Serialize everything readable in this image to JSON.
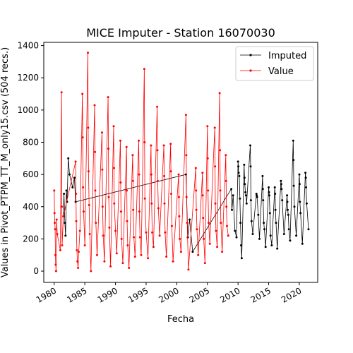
{
  "chart_data": {
    "type": "line",
    "title": "MICE Imputer - Station 16070030",
    "xlabel": "Fecha",
    "ylabel": "Values in Pivot_PTPM_TT_M_only15.csv (504 recs.)",
    "xlim": [
      1978.3,
      2023.0
    ],
    "ylim": [
      -70,
      1420
    ],
    "x_ticks": [
      1980,
      1985,
      1990,
      1995,
      2000,
      2005,
      2010,
      2015,
      2020
    ],
    "y_ticks": [
      0,
      200,
      400,
      600,
      800,
      1000,
      1200,
      1400
    ],
    "legend": {
      "placement": "top-right",
      "entries": [
        "Imputed",
        "Value"
      ]
    },
    "grid": false,
    "colors": {
      "imputed": "#000000",
      "value": "#ff0000"
    },
    "series": [
      {
        "name": "Imputed",
        "x": [
          1981.5,
          1981.6,
          1981.75,
          1981.85,
          1982.0,
          1982.1,
          1982.3,
          1982.5,
          1983.0,
          1983.3,
          1983.5,
          2001.5,
          2001.8,
          2002.1,
          2002.6,
          2008.9,
          2009.0,
          2009.2,
          2009.5,
          2009.75,
          2010.0,
          2010.05,
          2010.1,
          2010.2,
          2010.3,
          2010.4,
          2010.5,
          2010.6,
          2011.0,
          2011.05,
          2011.1,
          2011.2,
          2011.3,
          2011.4,
          2012.0,
          2012.05,
          2012.1,
          2012.2,
          2012.4,
          2013.0,
          2013.05,
          2013.1,
          2013.3,
          2013.5,
          2014.0,
          2014.05,
          2014.1,
          2014.2,
          2014.3,
          2014.5,
          2015.0,
          2015.05,
          2015.1,
          2015.2,
          2015.3,
          2015.5,
          2016.0,
          2016.05,
          2016.1,
          2016.2,
          2016.4,
          2017.0,
          2017.05,
          2017.1,
          2017.2,
          2017.5,
          2018.0,
          2018.05,
          2018.1,
          2018.2,
          2018.3,
          2018.5,
          2019.0,
          2019.05,
          2019.1,
          2019.2,
          2019.5,
          2020.0,
          2020.05,
          2020.1,
          2020.2,
          2020.5,
          2021.0,
          2021.05,
          2021.1,
          2021.2,
          2021.5
        ],
        "y": [
          340,
          480,
          300,
          220,
          500,
          430,
          700,
          600,
          520,
          580,
          430,
          600,
          210,
          320,
          120,
          510,
          380,
          470,
          250,
          210,
          680,
          650,
          610,
          590,
          450,
          300,
          160,
          80,
          660,
          580,
          540,
          490,
          470,
          420,
          780,
          650,
          440,
          310,
          230,
          480,
          470,
          460,
          350,
          200,
          590,
          510,
          440,
          300,
          260,
          150,
          520,
          490,
          470,
          360,
          220,
          160,
          520,
          480,
          380,
          300,
          140,
          560,
          540,
          510,
          440,
          230,
          470,
          430,
          380,
          350,
          260,
          190,
          810,
          690,
          530,
          400,
          220,
          600,
          540,
          430,
          360,
          170,
          610,
          580,
          520,
          420,
          260
        ]
      },
      {
        "name": "Value",
        "x": [
          1980.0,
          1980.05,
          1980.1,
          1980.15,
          1980.2,
          1980.25,
          1980.3,
          1980.4,
          1980.5,
          1981.0,
          1981.2,
          1981.25,
          1981.3,
          1981.5,
          1983.5,
          1983.55,
          1983.6,
          1983.7,
          1983.8,
          1983.9,
          1984.0,
          1984.2,
          1984.6,
          1984.65,
          1984.7,
          1984.8,
          1985.0,
          1985.5,
          1985.55,
          1985.6,
          1985.7,
          1985.8,
          1986.0,
          1986.6,
          1986.65,
          1986.7,
          1986.8,
          1987.0,
          1987.8,
          1987.85,
          1987.9,
          1988.0,
          1988.2,
          1988.8,
          1988.85,
          1988.9,
          1989.0,
          1989.2,
          1989.7,
          1989.75,
          1989.8,
          1990.0,
          1990.2,
          1990.8,
          1990.85,
          1990.9,
          1991.0,
          1991.2,
          1991.8,
          1991.85,
          1991.9,
          1992.0,
          1992.2,
          1992.8,
          1992.85,
          1992.9,
          1993.0,
          1993.2,
          1993.8,
          1993.85,
          1993.9,
          1994.0,
          1994.2,
          1994.7,
          1994.75,
          1994.8,
          1995.0,
          1995.3,
          1995.8,
          1995.85,
          1995.9,
          1996.0,
          1996.2,
          1996.8,
          1996.85,
          1996.9,
          1997.0,
          1997.2,
          1997.9,
          1997.95,
          1998.0,
          1998.1,
          1998.3,
          1999.0,
          1999.05,
          1999.1,
          1999.2,
          1999.4,
          2000.3,
          2000.35,
          2000.4,
          2000.5,
          2000.7,
          2001.5,
          2001.55,
          2001.6,
          2001.7,
          2001.9,
          2003.1,
          2003.15,
          2003.2,
          2003.3,
          2003.5,
          2004.2,
          2004.25,
          2004.3,
          2004.4,
          2004.6,
          2005.0,
          2005.05,
          2005.1,
          2005.2,
          2005.4,
          2006.2,
          2006.25,
          2006.3,
          2006.4,
          2006.6,
          2007.0,
          2007.05,
          2007.1,
          2007.2,
          2007.4,
          2008.0,
          2008.05,
          2008.1,
          2008.2,
          2008.4
        ],
        "y": [
          500,
          360,
          300,
          260,
          100,
          40,
          0,
          320,
          230,
          130,
          1110,
          400,
          160,
          340,
          680,
          480,
          310,
          130,
          60,
          20,
          120,
          250,
          1100,
          830,
          520,
          370,
          160,
          1355,
          890,
          620,
          410,
          230,
          0,
          1030,
          740,
          500,
          300,
          100,
          860,
          630,
          400,
          220,
          60,
          1080,
          760,
          460,
          270,
          30,
          900,
          640,
          420,
          250,
          110,
          810,
          550,
          370,
          200,
          50,
          770,
          500,
          310,
          160,
          20,
          720,
          560,
          380,
          210,
          90,
          810,
          600,
          370,
          210,
          100,
          1255,
          800,
          450,
          240,
          80,
          780,
          600,
          420,
          240,
          150,
          1020,
          750,
          560,
          390,
          220,
          780,
          590,
          420,
          240,
          90,
          790,
          620,
          480,
          280,
          60,
          600,
          460,
          340,
          200,
          120,
          970,
          720,
          460,
          300,
          10,
          640,
          500,
          380,
          260,
          100,
          610,
          470,
          330,
          200,
          50,
          900,
          700,
          500,
          300,
          170,
          890,
          650,
          420,
          250,
          150,
          1105,
          750,
          500,
          300,
          120,
          720,
          560,
          400,
          280,
          220
        ]
      }
    ]
  }
}
